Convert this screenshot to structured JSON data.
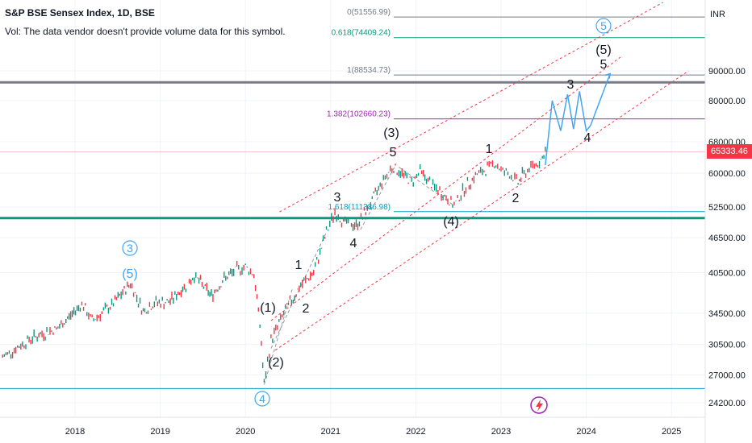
{
  "header": {
    "title": "S&P BSE Sensex Index, 1D, BSE",
    "volume_note": "Vol: The data vendor doesn't provide volume data for this symbol."
  },
  "price_axis": {
    "currency": "INR",
    "ticks": [
      "90000.00",
      "80000.00",
      "68000.00",
      "60000.00",
      "52500.00",
      "46500.00",
      "40500.00",
      "34500.00",
      "30500.00",
      "27000.00",
      "24200.00"
    ],
    "last_price": "65333.46"
  },
  "time_axis": {
    "ticks": [
      "2018",
      "2019",
      "2020",
      "2021",
      "2022",
      "2023",
      "2024",
      "2025"
    ]
  },
  "fib_levels": [
    {
      "label": "1.618(111386.98)",
      "color": "#00a3c4"
    },
    {
      "label": "1.382(102660.23)",
      "color": "#9c27b0"
    },
    {
      "label": "1(88534.73)",
      "color": "#787b86"
    },
    {
      "label": "0.618(74409.24)",
      "color": "#089981"
    },
    {
      "label": "0(51556.99)",
      "color": "#787b86"
    }
  ],
  "wave_labels": {
    "circled_3": "3",
    "paren_5_left": "(5)",
    "circled_4": "4",
    "paren_1": "(1)",
    "paren_2": "(2)",
    "w1": "1",
    "w2": "2",
    "w3": "3",
    "w4": "4",
    "paren_3": "(3)",
    "w5": "5",
    "paren_4": "(4)",
    "w1b": "1",
    "w2b": "2",
    "w3b": "3",
    "w4b": "4",
    "w5b": "5",
    "paren_5_right": "(5)",
    "circled_5": "5"
  },
  "colors": {
    "accent": "#2962ff",
    "up": "#089981",
    "down": "#f23645",
    "wave": "#42a5f5",
    "channel": "#f23645",
    "bold_line": "#787b86",
    "support": "#089981"
  },
  "chart_data": {
    "type": "line",
    "title": "S&P BSE Sensex Index, 1D, BSE",
    "xlabel": "",
    "ylabel": "",
    "scale": "log",
    "ylim": [
      23500,
      118000
    ],
    "xlim": [
      2017.15,
      2025.55
    ],
    "series": [
      {
        "x": [
          2017.15,
          2017.5,
          2017.8,
          2018.08,
          2018.2,
          2018.45,
          2018.65,
          2018.8,
          2018.95,
          2019.1,
          2019.3,
          2019.4,
          2019.6,
          2019.75,
          2019.9,
          2020.0,
          2020.1,
          2020.17,
          2020.22,
          2020.3,
          2020.45,
          2020.65,
          2020.8,
          2020.95,
          2021.05,
          2021.15,
          2021.3,
          2021.45,
          2021.6,
          2021.72,
          2021.8,
          2021.95,
          2022.05,
          2022.2,
          2022.3,
          2022.45,
          2022.55,
          2022.7,
          2022.8,
          2022.92,
          2023.0,
          2023.1,
          2023.2,
          2023.25,
          2023.35,
          2023.45,
          2023.52
        ],
        "y": [
          29000,
          31300,
          32500,
          35800,
          33500,
          35800,
          38800,
          34800,
          36000,
          36000,
          38500,
          40000,
          37000,
          39500,
          41000,
          41500,
          40200,
          33000,
          26000,
          31000,
          34500,
          38500,
          40500,
          47500,
          51500,
          49500,
          48800,
          52500,
          58000,
          61500,
          60500,
          58000,
          60500,
          57000,
          55500,
          52800,
          56000,
          59500,
          60500,
          62600,
          60800,
          59800,
          57800,
          59500,
          61500,
          62800,
          65333
        ]
      }
    ],
    "projection": {
      "x": [
        2023.52,
        2023.6,
        2023.7,
        2023.78,
        2023.85,
        2023.92,
        2024.0,
        2024.05,
        2024.28
      ],
      "y": [
        62000,
        80000,
        71000,
        82000,
        71500,
        83000,
        71000,
        72500,
        89000
      ]
    },
    "fibonacci": {
      "ratios": [
        0,
        0.618,
        1,
        1.382,
        1.618
      ],
      "values": [
        51556.99,
        74409.24,
        88534.73,
        102660.23,
        111386.98
      ]
    }
  }
}
